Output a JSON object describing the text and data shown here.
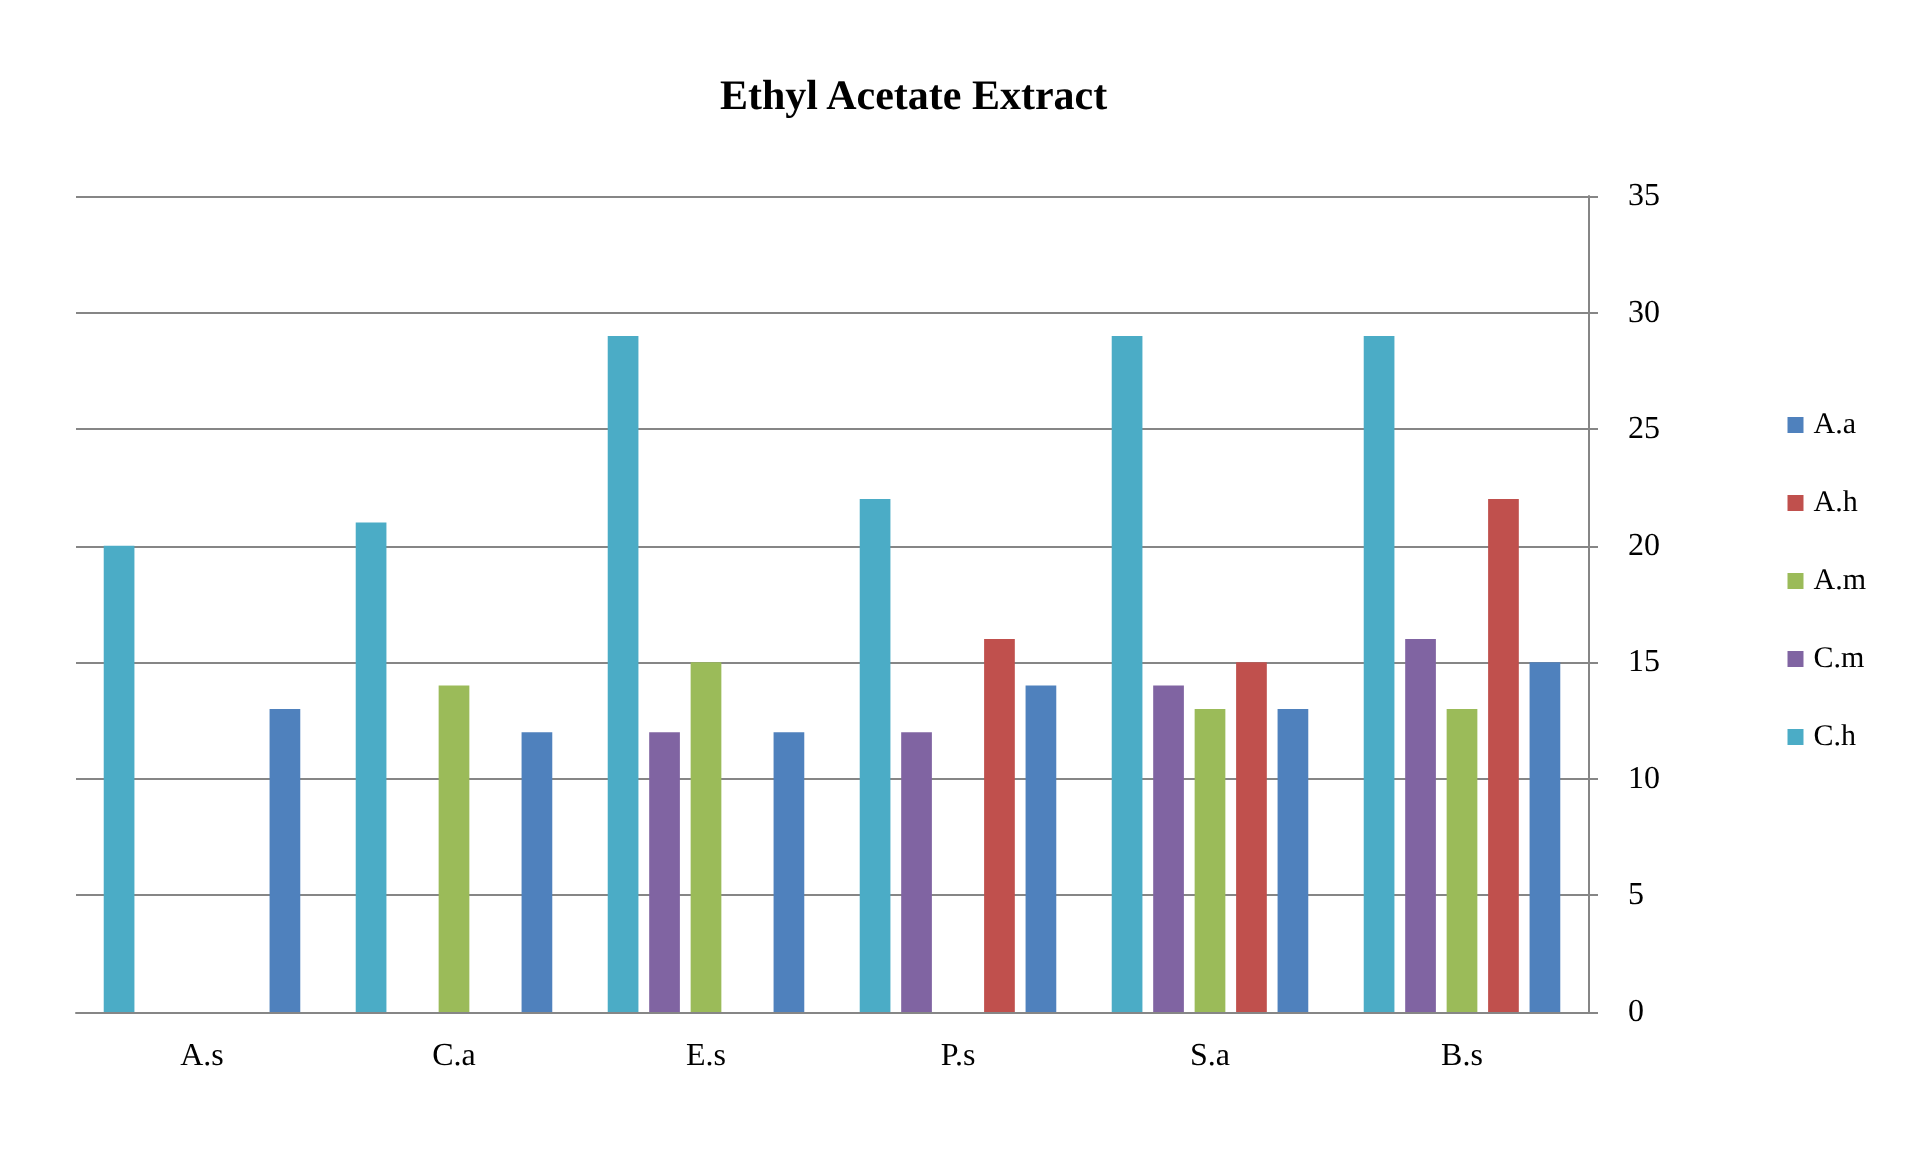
{
  "chart_data": {
    "type": "bar",
    "title": "Ethyl Acetate Extract",
    "categories": [
      "A.s",
      "C.a",
      "E.s",
      "P.s",
      "S.a",
      "B.s"
    ],
    "series": [
      {
        "name": "C.h",
        "color": "#4bacc6",
        "values": [
          20,
          21,
          29,
          22,
          29,
          29
        ]
      },
      {
        "name": "C.m",
        "color": "#8064a2",
        "values": [
          0,
          0,
          12,
          12,
          14,
          16
        ]
      },
      {
        "name": "A.m",
        "color": "#9bbb59",
        "values": [
          0,
          14,
          15,
          0,
          13,
          13
        ]
      },
      {
        "name": "A.h",
        "color": "#c0504d",
        "values": [
          0,
          0,
          0,
          16,
          15,
          22
        ]
      },
      {
        "name": "A.a",
        "color": "#4f81bd",
        "values": [
          13,
          12,
          12,
          14,
          13,
          15
        ]
      }
    ],
    "ylim": [
      0,
      35
    ],
    "yticks": [
      0,
      5,
      10,
      15,
      20,
      25,
      30,
      35
    ],
    "grid": "y",
    "legend": "right"
  }
}
